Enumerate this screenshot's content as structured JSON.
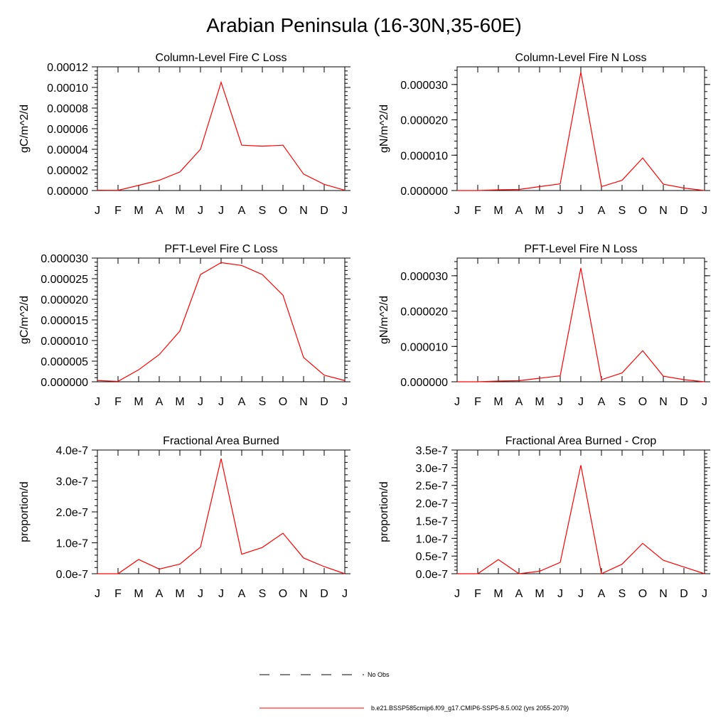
{
  "title": "Arabian Peninsula (16-30N,35-60E)",
  "legend": {
    "no_obs_label": "No Obs",
    "model_label": "b.e21.BSSP585cmip6.f09_g17.CMIP6-SSP5-8.5.002 (yrs 2055-2079)",
    "model_color": "#ff0000",
    "obs_color": "#000000"
  },
  "chart_data": [
    {
      "type": "line",
      "title": "Column-Level Fire C Loss",
      "ylabel": "gC/m^2/d",
      "categories": [
        "J",
        "F",
        "M",
        "A",
        "M",
        "J",
        "J",
        "A",
        "S",
        "O",
        "N",
        "D",
        "J"
      ],
      "ylim": [
        0,
        0.00012
      ],
      "yticks": [
        0,
        2e-05,
        4e-05,
        6e-05,
        8e-05,
        0.0001,
        0.00012
      ],
      "ytick_labels": [
        "0.00000",
        "0.00002",
        "0.00004",
        "0.00006",
        "0.00008",
        "0.00010",
        "0.00012"
      ],
      "series": [
        {
          "name": "b.e21.BSSP585cmip6.f09_g17.CMIP6-SSP5-8.5.002 (yrs 2055-2079)",
          "color": "#ff0000",
          "values": [
            3e-07,
            2e-07,
            5e-06,
            1e-05,
            1.8e-05,
            4e-05,
            0.000105,
            4.4e-05,
            4.3e-05,
            4.4e-05,
            1.6e-05,
            6e-06,
            3e-07
          ]
        }
      ]
    },
    {
      "type": "line",
      "title": "Column-Level Fire N Loss",
      "ylabel": "gN/m^2/d",
      "categories": [
        "J",
        "F",
        "M",
        "A",
        "M",
        "J",
        "J",
        "A",
        "S",
        "O",
        "N",
        "D",
        "J"
      ],
      "ylim": [
        0,
        3.5e-05
      ],
      "yticks": [
        0,
        1e-05,
        2e-05,
        3e-05
      ],
      "ytick_labels": [
        "0.000000",
        "0.000010",
        "0.000020",
        "0.000030"
      ],
      "series": [
        {
          "name": "b.e21.BSSP585cmip6.f09_g17.CMIP6-SSP5-8.5.002 (yrs 2055-2079)",
          "color": "#ff0000",
          "values": [
            0.0,
            0.0,
            2e-07,
            3e-07,
            1.1e-06,
            1.9e-06,
            3.35e-05,
            1.1e-06,
            2.9e-06,
            9.2e-06,
            1.8e-06,
            7e-07,
            0.0
          ]
        }
      ]
    },
    {
      "type": "line",
      "title": "PFT-Level Fire C Loss",
      "ylabel": "gC/m^2/d",
      "categories": [
        "J",
        "F",
        "M",
        "A",
        "M",
        "J",
        "J",
        "A",
        "S",
        "O",
        "N",
        "D",
        "J"
      ],
      "ylim": [
        0,
        3e-05
      ],
      "yticks": [
        0,
        5e-06,
        1e-05,
        1.5e-05,
        2e-05,
        2.5e-05,
        3e-05
      ],
      "ytick_labels": [
        "0.000000",
        "0.000005",
        "0.000010",
        "0.000015",
        "0.000020",
        "0.000025",
        "0.000030"
      ],
      "series": [
        {
          "name": "b.e21.BSSP585cmip6.f09_g17.CMIP6-SSP5-8.5.002 (yrs 2055-2079)",
          "color": "#ff0000",
          "values": [
            3e-07,
            1e-07,
            2.9e-06,
            6.6e-06,
            1.23e-05,
            2.6e-05,
            2.89e-05,
            2.82e-05,
            2.6e-05,
            2.1e-05,
            5.9e-06,
            1.6e-06,
            3e-07
          ]
        }
      ]
    },
    {
      "type": "line",
      "title": "PFT-Level Fire N Loss",
      "ylabel": "gN/m^2/d",
      "categories": [
        "J",
        "F",
        "M",
        "A",
        "M",
        "J",
        "J",
        "A",
        "S",
        "O",
        "N",
        "D",
        "J"
      ],
      "ylim": [
        0,
        3.5e-05
      ],
      "yticks": [
        0,
        1e-05,
        2e-05,
        3e-05
      ],
      "ytick_labels": [
        "0.000000",
        "0.000010",
        "0.000020",
        "0.000030"
      ],
      "series": [
        {
          "name": "b.e21.BSSP585cmip6.f09_g17.CMIP6-SSP5-8.5.002 (yrs 2055-2079)",
          "color": "#ff0000",
          "values": [
            0.0,
            0.0,
            2e-07,
            3e-07,
            1e-06,
            1.7e-06,
            3.22e-05,
            6e-07,
            2.5e-06,
            8.8e-06,
            1.6e-06,
            6e-07,
            0.0
          ]
        }
      ]
    },
    {
      "type": "line",
      "title": "Fractional Area Burned",
      "ylabel": "proportion/d",
      "categories": [
        "J",
        "F",
        "M",
        "A",
        "M",
        "J",
        "J",
        "A",
        "S",
        "O",
        "N",
        "D",
        "J"
      ],
      "ylim": [
        0,
        4e-07
      ],
      "yticks": [
        0,
        1e-07,
        2e-07,
        3e-07,
        4e-07
      ],
      "ytick_labels": [
        "0.0e-7",
        "1.0e-7",
        "2.0e-7",
        "3.0e-7",
        "4.0e-7"
      ],
      "series": [
        {
          "name": "b.e21.BSSP585cmip6.f09_g17.CMIP6-SSP5-8.5.002 (yrs 2055-2079)",
          "color": "#ff0000",
          "values": [
            0.0,
            0.0,
            4.6e-08,
            1.5e-08,
            3.1e-08,
            8.6e-08,
            3.72e-07,
            6.3e-08,
            8.5e-08,
            1.31e-07,
            5.1e-08,
            2.3e-08,
            0.0
          ]
        }
      ]
    },
    {
      "type": "line",
      "title": "Fractional Area Burned - Crop",
      "ylabel": "proportion/d",
      "categories": [
        "J",
        "F",
        "M",
        "A",
        "M",
        "J",
        "J",
        "A",
        "S",
        "O",
        "N",
        "D",
        "J"
      ],
      "ylim": [
        0,
        3.5e-07
      ],
      "yticks": [
        0,
        5e-08,
        1e-07,
        1.5e-07,
        2e-07,
        2.5e-07,
        3e-07,
        3.5e-07
      ],
      "ytick_labels": [
        "0.0e-7",
        "0.5e-7",
        "1.0e-7",
        "1.5e-7",
        "2.0e-7",
        "2.5e-7",
        "3.0e-7",
        "3.5e-7"
      ],
      "series": [
        {
          "name": "b.e21.BSSP585cmip6.f09_g17.CMIP6-SSP5-8.5.002 (yrs 2055-2079)",
          "color": "#ff0000",
          "values": [
            0.0,
            0.0,
            4e-08,
            0.0,
            7e-09,
            3.2e-08,
            3.07e-07,
            0.0,
            2.7e-08,
            8.6e-08,
            3.8e-08,
            1.9e-08,
            0.0
          ]
        }
      ]
    }
  ]
}
